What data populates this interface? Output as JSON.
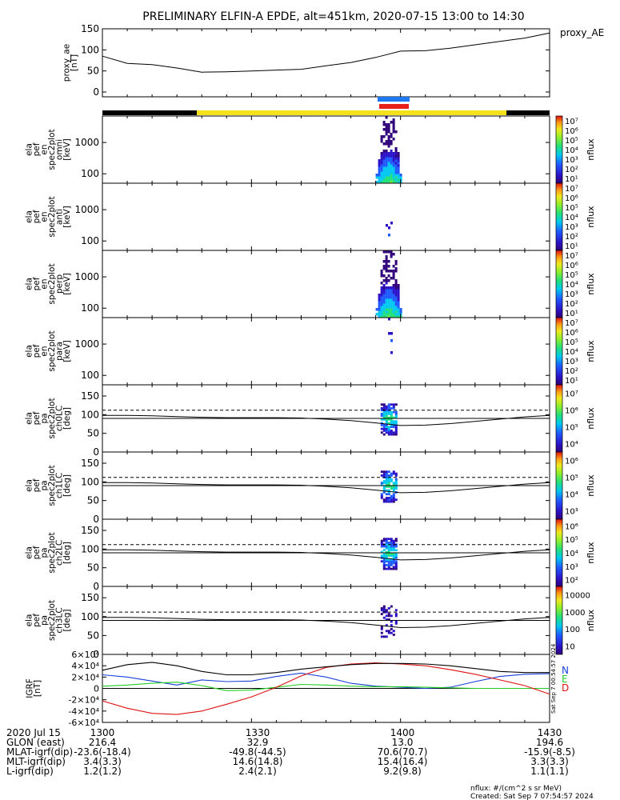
{
  "title": "PRELIMINARY ELFIN-A EPDE, alt=451km, 2020-07-15 13:00 to 14:30",
  "colors": {
    "ae_line": "#000000",
    "bar_black": "#000000",
    "bar_yellow": "#f5e11a",
    "blue_mark": "#1e78f0",
    "red_mark": "#e8201a",
    "grf_n": "#1a3fd8",
    "grf_e": "#22cc22",
    "grf_d": "#dd1111",
    "grf_total": "#000000"
  },
  "chart_data": [
    {
      "type": "line",
      "panel": "proxy_ae",
      "ylabel": [
        "proxy_ae",
        "[nT]"
      ],
      "legend": "proxy_AE",
      "ylim": [
        0,
        150
      ],
      "yticks": [
        "0",
        "50",
        "100",
        "150"
      ],
      "x": [
        "13:00",
        "13:05",
        "13:10",
        "13:15",
        "13:20",
        "13:25",
        "13:30",
        "13:35",
        "13:40",
        "13:45",
        "13:50",
        "13:55",
        "14:00",
        "14:05",
        "14:10",
        "14:15",
        "14:20",
        "14:25",
        "14:30"
      ],
      "values": [
        85,
        68,
        65,
        57,
        47,
        48,
        50,
        52,
        54,
        62,
        70,
        82,
        97,
        98,
        104,
        112,
        120,
        128,
        140
      ]
    },
    {
      "type": "heatmap",
      "panel": "omni",
      "ylabel": [
        "ela",
        "pef",
        "en",
        "spec2plot",
        "omni",
        "[keV]"
      ],
      "yscale": "log",
      "yticks": [
        "100",
        "1000"
      ],
      "colorbar": {
        "label": "nflux",
        "ticks": [
          "10¹",
          "10²",
          "10³",
          "10⁴",
          "10⁵",
          "10⁶",
          "10⁷"
        ]
      },
      "active_interval": [
        "13:55",
        "14:00"
      ]
    },
    {
      "type": "heatmap",
      "panel": "anti",
      "ylabel": [
        "ela",
        "pef",
        "en",
        "spec2plot",
        "anti",
        "[keV]"
      ],
      "yscale": "log",
      "yticks": [
        "100",
        "1000"
      ],
      "colorbar": {
        "label": "nflux",
        "ticks": [
          "10¹",
          "10²",
          "10³",
          "10⁴",
          "10⁵",
          "10⁶",
          "10⁷"
        ]
      },
      "active_interval": [
        "13:57",
        "13:58"
      ]
    },
    {
      "type": "heatmap",
      "panel": "perp",
      "ylabel": [
        "ela",
        "pef",
        "en",
        "spec2plot",
        "perp",
        "[keV]"
      ],
      "yscale": "log",
      "yticks": [
        "100",
        "1000"
      ],
      "colorbar": {
        "label": "nflux",
        "ticks": [
          "10¹",
          "10²",
          "10³",
          "10⁴",
          "10⁵",
          "10⁶",
          "10⁷"
        ]
      },
      "active_interval": [
        "13:55",
        "14:00"
      ]
    },
    {
      "type": "heatmap",
      "panel": "para",
      "ylabel": [
        "ela",
        "pef",
        "en",
        "spec2plot",
        "para",
        "[keV]"
      ],
      "yscale": "log",
      "yticks": [
        "100",
        "1000"
      ],
      "colorbar": {
        "label": "nflux",
        "ticks": [
          "10¹",
          "10²",
          "10³",
          "10⁴",
          "10⁵",
          "10⁶",
          "10⁷"
        ]
      },
      "active_interval": [
        "13:57",
        "13:58"
      ]
    },
    {
      "type": "heatmap",
      "panel": "ch0LC",
      "ylabel": [
        "ela",
        "pef",
        "pa",
        "spec2plot",
        "ch0LC",
        "[deg]"
      ],
      "ylim": [
        0,
        180
      ],
      "yticks": [
        "0",
        "50",
        "100",
        "150"
      ],
      "colorbar": {
        "label": "nflux",
        "ticks": [
          "10⁴",
          "10⁵",
          "10⁶",
          "10⁷"
        ]
      },
      "loss_cone_deg": [
        98,
        98,
        97,
        95,
        93,
        92,
        92,
        92,
        91,
        88,
        84,
        78,
        71,
        72,
        76,
        82,
        88,
        94,
        98
      ],
      "anti_loss_cone_deg": [
        112,
        112,
        112,
        112,
        112,
        112,
        112,
        112,
        112,
        112,
        112,
        112,
        112,
        112,
        112,
        112,
        112,
        112,
        112
      ]
    },
    {
      "type": "heatmap",
      "panel": "ch1LC",
      "ylabel": [
        "ela",
        "pef",
        "pa",
        "spec2plot",
        "ch1LC",
        "[deg]"
      ],
      "ylim": [
        0,
        180
      ],
      "yticks": [
        "0",
        "50",
        "100",
        "150"
      ],
      "colorbar": {
        "label": "nflux",
        "ticks": [
          "10³",
          "10⁴",
          "10⁵",
          "10⁶"
        ]
      },
      "loss_cone_deg": [
        98,
        98,
        97,
        95,
        93,
        92,
        92,
        92,
        91,
        88,
        84,
        78,
        71,
        72,
        76,
        82,
        88,
        94,
        98
      ],
      "anti_loss_cone_deg": [
        112,
        112,
        112,
        112,
        112,
        112,
        112,
        112,
        112,
        112,
        112,
        112,
        112,
        112,
        112,
        112,
        112,
        112,
        112
      ]
    },
    {
      "type": "heatmap",
      "panel": "ch2LC",
      "ylabel": [
        "ela",
        "pef",
        "pa",
        "spec2plot",
        "ch2LC",
        "[deg]"
      ],
      "ylim": [
        0,
        180
      ],
      "yticks": [
        "0",
        "50",
        "100",
        "150"
      ],
      "colorbar": {
        "label": "nflux",
        "ticks": [
          "10²",
          "10³",
          "10⁴",
          "10⁵",
          "10⁶"
        ]
      },
      "loss_cone_deg": [
        98,
        98,
        97,
        95,
        93,
        92,
        92,
        92,
        91,
        88,
        84,
        78,
        71,
        72,
        76,
        82,
        88,
        94,
        98
      ],
      "anti_loss_cone_deg": [
        112,
        112,
        112,
        112,
        112,
        112,
        112,
        112,
        112,
        112,
        112,
        112,
        112,
        112,
        112,
        112,
        112,
        112,
        112
      ]
    },
    {
      "type": "heatmap",
      "panel": "ch3LC",
      "ylabel": [
        "ela",
        "pef",
        "pa",
        "spec2plot",
        "ch3LC",
        "[deg]"
      ],
      "ylim": [
        0,
        180
      ],
      "yticks": [
        "0",
        "50",
        "100",
        "150"
      ],
      "colorbar": {
        "label": "nflux",
        "ticks": [
          "10",
          "100",
          "1000",
          "10000"
        ]
      },
      "loss_cone_deg": [
        98,
        98,
        97,
        95,
        93,
        92,
        92,
        92,
        91,
        88,
        84,
        78,
        71,
        72,
        76,
        82,
        88,
        94,
        98
      ],
      "anti_loss_cone_deg": [
        112,
        112,
        112,
        112,
        112,
        112,
        112,
        112,
        112,
        112,
        112,
        112,
        112,
        112,
        112,
        112,
        112,
        112,
        112
      ]
    },
    {
      "type": "line",
      "panel": "IGRF",
      "ylabel": [
        "IGRF",
        "[nT]"
      ],
      "ylim": [
        -60000,
        60000
      ],
      "yticks": [
        "-6×10⁴",
        "-4×10⁴",
        "-2×10⁴",
        "0",
        "2×10⁴",
        "4×10⁴",
        "6×10⁴"
      ],
      "legend": [
        "N",
        "E",
        "D"
      ],
      "x": [
        "13:00",
        "13:05",
        "13:10",
        "13:15",
        "13:20",
        "13:25",
        "13:30",
        "13:35",
        "13:40",
        "13:45",
        "13:50",
        "13:55",
        "14:00",
        "14:05",
        "14:10",
        "14:15",
        "14:20",
        "14:25",
        "14:30"
      ],
      "series": [
        {
          "name": "N",
          "values": [
            24000,
            20000,
            13000,
            6000,
            15000,
            12000,
            13000,
            21000,
            27000,
            20000,
            9000,
            4000,
            2000,
            0,
            2000,
            12000,
            21000,
            25000,
            26000
          ]
        },
        {
          "name": "E",
          "values": [
            4000,
            6000,
            9000,
            11000,
            5000,
            -4000,
            -3000,
            2000,
            7000,
            6000,
            4000,
            3000,
            3000,
            2000,
            1000,
            0,
            0,
            0,
            0
          ]
        },
        {
          "name": "D",
          "values": [
            -22000,
            -35000,
            -44000,
            -46000,
            -40000,
            -28000,
            -15000,
            2000,
            22000,
            37000,
            43000,
            45000,
            43000,
            40000,
            33000,
            25000,
            15000,
            5000,
            -10000
          ]
        },
        {
          "name": "",
          "values": [
            32000,
            42000,
            46000,
            40000,
            30000,
            24000,
            24000,
            28000,
            34000,
            38000,
            42000,
            44000,
            44000,
            43000,
            40000,
            35000,
            30000,
            28000,
            28000
          ]
        }
      ]
    }
  ],
  "side_stamp": "Sat Sep  7 00:54:57 2024",
  "footer": {
    "rows": [
      {
        "label": "2020 Jul 15",
        "values": [
          "1300",
          "1330",
          "1400",
          "1430"
        ]
      },
      {
        "label": "GLON (east)",
        "values": [
          "216.4",
          "32.9",
          "13.0",
          "194.6"
        ]
      },
      {
        "label": "MLAT-igrf(dip)",
        "values": [
          "-23.6(-18.4)",
          "-49.8(-44.5)",
          "70.6(70.7)",
          "-15.9(-8.5)"
        ]
      },
      {
        "label": "MLT-igrf(dip)",
        "values": [
          "3.4(3.3)",
          "14.6(14.8)",
          "15.4(16.4)",
          "3.3(3.3)"
        ]
      },
      {
        "label": "L-igrf(dip)",
        "values": [
          "1.2(1.2)",
          "2.4(2.1)",
          "9.2(9.8)",
          "1.1(1.1)"
        ]
      }
    ],
    "units": "nflux: #/(cm^2 s sr MeV)",
    "created": "Created: Sat Sep  7 07:54:57 2024"
  }
}
